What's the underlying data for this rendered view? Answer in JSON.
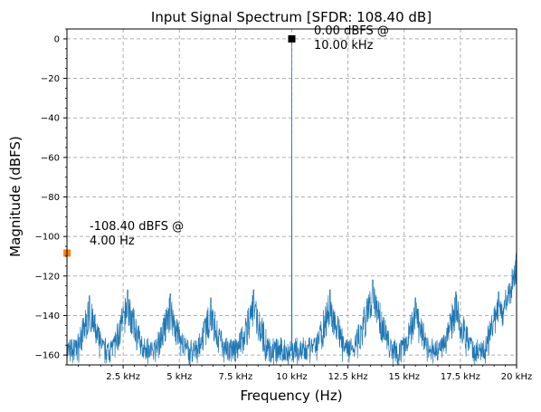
{
  "chart_data": {
    "type": "line",
    "title": "Input Signal Spectrum [SFDR: 108.40 dB]",
    "xlabel": "Frequency (Hz)",
    "ylabel": "Magnitude (dBFS)",
    "xlim": [
      0,
      20000
    ],
    "ylim": [
      -165,
      5
    ],
    "grid": true,
    "x_ticks": [
      2500,
      5000,
      7500,
      10000,
      12500,
      15000,
      17500,
      20000
    ],
    "x_tick_labels": [
      "2.5 kHz",
      "5 kHz",
      "7.5 kHz",
      "10 kHz",
      "12.5 kHz",
      "15 kHz",
      "17.5 kHz",
      "20 kHz"
    ],
    "y_ticks": [
      0,
      -20,
      -40,
      -60,
      -80,
      -100,
      -120,
      -140,
      -160
    ],
    "y_tick_labels": [
      "0",
      "−20",
      "−40",
      "−60",
      "−80",
      "−100",
      "−120",
      "−140",
      "−160"
    ],
    "series": [
      {
        "color": "#1f77b4",
        "noise_floor": -158,
        "fundamental": {
          "x": 10000,
          "y": 0
        },
        "harmonic_peaks": [
          {
            "x": 1000,
            "y": -130
          },
          {
            "x": 2700,
            "y": -127
          },
          {
            "x": 4600,
            "y": -129
          },
          {
            "x": 6400,
            "y": -131
          },
          {
            "x": 8300,
            "y": -127
          },
          {
            "x": 11700,
            "y": -127
          },
          {
            "x": 13600,
            "y": -122
          },
          {
            "x": 15500,
            "y": -131
          },
          {
            "x": 17300,
            "y": -128
          },
          {
            "x": 19200,
            "y": -128
          },
          {
            "x": 20000,
            "y": -108
          }
        ]
      }
    ],
    "markers": [
      {
        "x": 10000,
        "y": 0.0,
        "color": "#000000",
        "shape": "square"
      },
      {
        "x": 4,
        "y": -108.4,
        "color": "#ff7f0e",
        "shape": "square"
      }
    ],
    "annotations": [
      {
        "line1": "0.00 dBFS @",
        "line2": "10.00 kHz"
      },
      {
        "line1": "-108.40 dBFS @",
        "line2": "4.00 Hz"
      }
    ]
  }
}
